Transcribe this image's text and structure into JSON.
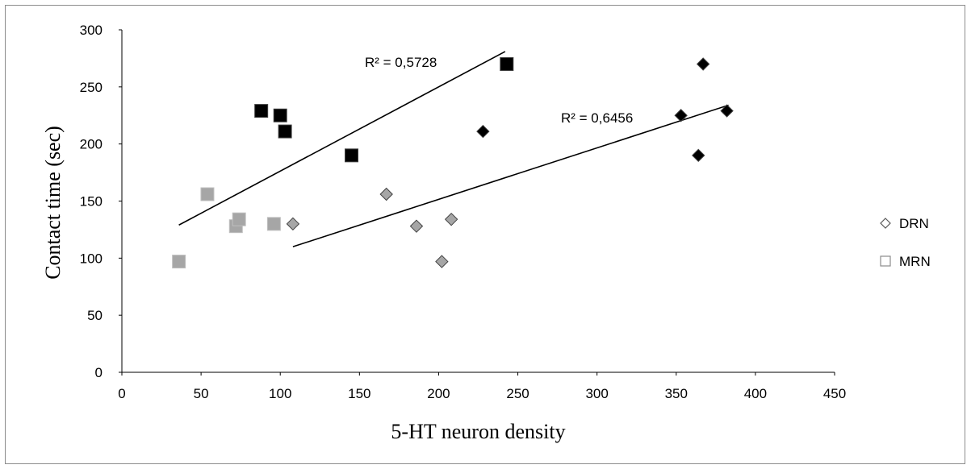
{
  "chart_data": {
    "type": "scatter",
    "title": "",
    "xlabel": "5-HT neuron density",
    "ylabel": "Contact time (sec)",
    "xlim": [
      0,
      450
    ],
    "ylim": [
      0,
      300
    ],
    "x_ticks": [
      "0",
      "50",
      "100",
      "150",
      "200",
      "250",
      "300",
      "350",
      "400",
      "450"
    ],
    "y_ticks": [
      "0",
      "50",
      "100",
      "150",
      "200",
      "250",
      "300"
    ],
    "grid": false,
    "legend_position": "right",
    "legend": [
      {
        "label": "DRN",
        "marker": "diamond-outline"
      },
      {
        "label": "MRN",
        "marker": "square-outline"
      }
    ],
    "series": [
      {
        "name": "DRN",
        "marker": "diamond",
        "groups": [
          {
            "color": "#a6a6a6",
            "points": [
              [
                108,
                130
              ],
              [
                167,
                156
              ],
              [
                186,
                128
              ],
              [
                208,
                134
              ],
              [
                202,
                97
              ]
            ]
          },
          {
            "color": "#000000",
            "points": [
              [
                228,
                211
              ],
              [
                353,
                225
              ],
              [
                367,
                270
              ],
              [
                382,
                229
              ],
              [
                364,
                190
              ]
            ]
          }
        ]
      },
      {
        "name": "MRN",
        "marker": "square",
        "groups": [
          {
            "color": "#a6a6a6",
            "points": [
              [
                36,
                97
              ],
              [
                54,
                156
              ],
              [
                72,
                128
              ],
              [
                74,
                134
              ],
              [
                96,
                130
              ]
            ]
          },
          {
            "color": "#000000",
            "points": [
              [
                88,
                229
              ],
              [
                100,
                225
              ],
              [
                103,
                211
              ],
              [
                145,
                190
              ],
              [
                243,
                270
              ]
            ]
          }
        ]
      }
    ],
    "trendlines": [
      {
        "label": "R² = 0,5728",
        "from": [
          36,
          129
        ],
        "to": [
          242,
          281
        ]
      },
      {
        "label": "R² = 0,6456",
        "from": [
          108,
          110
        ],
        "to": [
          383,
          234
        ]
      }
    ]
  }
}
